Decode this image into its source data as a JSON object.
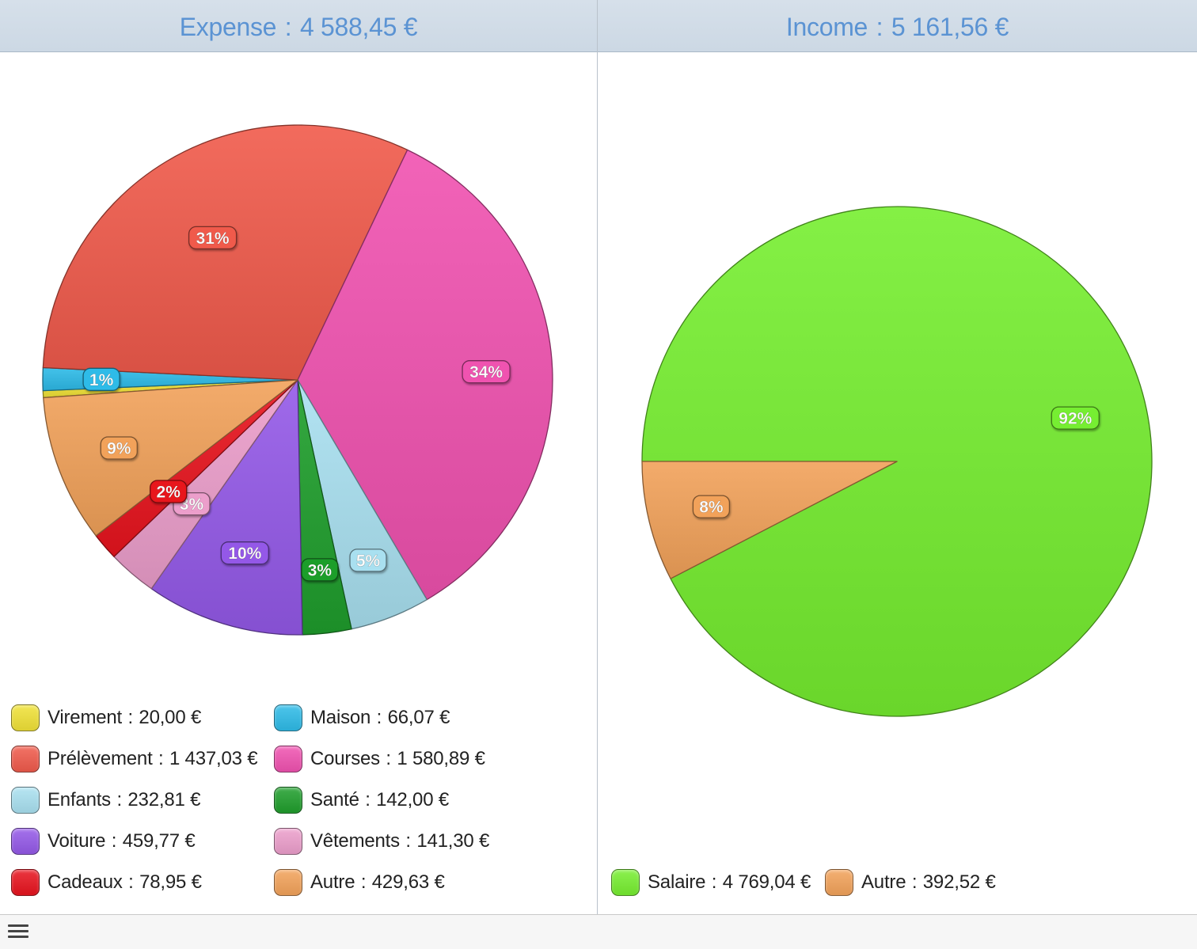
{
  "chart_data": [
    {
      "type": "pie",
      "title": "Expense",
      "total": "4 588,45 €",
      "currency": "€",
      "series": [
        {
          "name": "Virement",
          "value": 20.0,
          "value_text": "20,00",
          "pct_label": "",
          "color": "#f0e136"
        },
        {
          "name": "Maison",
          "value": 66.07,
          "value_text": "66,07",
          "pct_label": "1%",
          "color": "#2ebbe8"
        },
        {
          "name": "Prélèvement",
          "value": 1437.03,
          "value_text": "1 437,03",
          "pct_label": "31%",
          "color": "#f05a4b"
        },
        {
          "name": "Courses",
          "value": 1580.89,
          "value_text": "1 580,89",
          "pct_label": "34%",
          "color": "#f052b0"
        },
        {
          "name": "Enfants",
          "value": 232.81,
          "value_text": "232,81",
          "pct_label": "5%",
          "color": "#a9e0f0"
        },
        {
          "name": "Santé",
          "value": 142.0,
          "value_text": "142,00",
          "pct_label": "3%",
          "color": "#1f9e2c"
        },
        {
          "name": "Voiture",
          "value": 459.77,
          "value_text": "459,77",
          "pct_label": "10%",
          "color": "#9459e8"
        },
        {
          "name": "Vêtements",
          "value": 141.3,
          "value_text": "141,30",
          "pct_label": "3%",
          "color": "#ec9ecb"
        },
        {
          "name": "Cadeaux",
          "value": 78.95,
          "value_text": "78,95",
          "pct_label": "2%",
          "color": "#e8141e"
        },
        {
          "name": "Autre",
          "value": 429.63,
          "value_text": "429,63",
          "pct_label": "9%",
          "color": "#f2a25a"
        }
      ]
    },
    {
      "type": "pie",
      "title": "Income",
      "total": "5 161,56 €",
      "currency": "€",
      "series": [
        {
          "name": "Salaire",
          "value": 4769.04,
          "value_text": "4 769,04",
          "pct_label": "92%",
          "color": "#76ee30"
        },
        {
          "name": "Autre",
          "value": 392.52,
          "value_text": "392,52",
          "pct_label": "8%",
          "color": "#f2a25a"
        }
      ]
    }
  ],
  "ui": {
    "separator": ":",
    "menu_icon": "hamburger-menu-icon"
  }
}
